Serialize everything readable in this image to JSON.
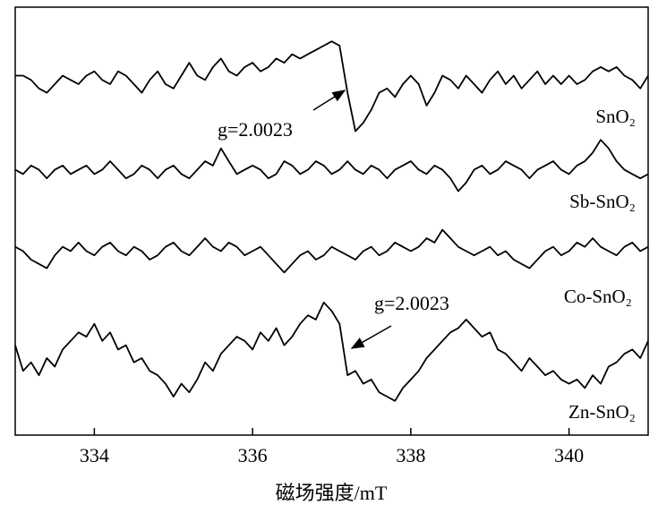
{
  "chart_data": {
    "type": "line",
    "x_label": "磁场强度/mT",
    "x": [
      333.0,
      333.1,
      333.2,
      333.3,
      333.4,
      333.5,
      333.6,
      333.7,
      333.8,
      333.9,
      334.0,
      334.1,
      334.2,
      334.3,
      334.4,
      334.5,
      334.6,
      334.7,
      334.8,
      334.9,
      335.0,
      335.1,
      335.2,
      335.3,
      335.4,
      335.5,
      335.6,
      335.7,
      335.8,
      335.9,
      336.0,
      336.1,
      336.2,
      336.3,
      336.4,
      336.5,
      336.6,
      336.7,
      336.8,
      336.9,
      337.0,
      337.1,
      337.2,
      337.3,
      337.4,
      337.5,
      337.6,
      337.7,
      337.8,
      337.9,
      338.0,
      338.1,
      338.2,
      338.3,
      338.4,
      338.5,
      338.6,
      338.7,
      338.8,
      338.9,
      339.0,
      339.1,
      339.2,
      339.3,
      339.4,
      339.5,
      339.6,
      339.7,
      339.8,
      339.9,
      340.0,
      340.1,
      340.2,
      340.3,
      340.4,
      340.5,
      340.6,
      340.7,
      340.8,
      340.9,
      341.0
    ],
    "series": [
      {
        "name": "SnO₂",
        "color": "#000000",
        "values": [
          84,
          84,
          83,
          81,
          80,
          82,
          84,
          83,
          82,
          84,
          85,
          83,
          82,
          85,
          84,
          82,
          80,
          83,
          85,
          82,
          81,
          84,
          87,
          84,
          83,
          86,
          88,
          85,
          84,
          86,
          87,
          85,
          86,
          88,
          87,
          89,
          88,
          89,
          90,
          91,
          92,
          91,
          80,
          71,
          73,
          76,
          80,
          81,
          79,
          82,
          84,
          82,
          77,
          80,
          84,
          83,
          81,
          84,
          82,
          80,
          83,
          85,
          82,
          84,
          81,
          83,
          85,
          82,
          84,
          82,
          84,
          82,
          83,
          85,
          86,
          85,
          86,
          84,
          83,
          81,
          84
        ]
      },
      {
        "name": "Sb-SnO₂",
        "color": "#000000",
        "values": [
          62,
          61,
          63,
          62,
          60,
          62,
          63,
          61,
          62,
          63,
          61,
          62,
          64,
          62,
          60,
          61,
          63,
          62,
          60,
          62,
          63,
          61,
          60,
          62,
          64,
          63,
          67,
          64,
          61,
          62,
          63,
          62,
          60,
          61,
          64,
          63,
          61,
          62,
          64,
          63,
          61,
          62,
          64,
          62,
          61,
          63,
          62,
          60,
          62,
          63,
          64,
          62,
          61,
          63,
          62,
          60,
          57,
          59,
          62,
          63,
          61,
          62,
          64,
          63,
          62,
          60,
          62,
          63,
          64,
          62,
          61,
          63,
          64,
          66,
          69,
          67,
          64,
          62,
          61,
          60,
          61
        ]
      },
      {
        "name": "Co-SnO₂",
        "color": "#000000",
        "values": [
          44,
          43,
          41,
          40,
          39,
          42,
          44,
          43,
          45,
          43,
          42,
          44,
          45,
          43,
          42,
          44,
          43,
          41,
          42,
          44,
          45,
          43,
          42,
          44,
          46,
          44,
          43,
          45,
          44,
          42,
          43,
          44,
          42,
          40,
          38,
          40,
          42,
          43,
          41,
          42,
          44,
          43,
          42,
          41,
          43,
          44,
          42,
          43,
          45,
          44,
          43,
          44,
          46,
          45,
          48,
          46,
          44,
          43,
          42,
          43,
          44,
          42,
          43,
          41,
          40,
          39,
          41,
          43,
          44,
          42,
          43,
          45,
          44,
          46,
          44,
          43,
          42,
          44,
          45,
          43,
          44
        ]
      },
      {
        "name": "Zn-SnO₂",
        "color": "#000000",
        "values": [
          21,
          15,
          17,
          14,
          18,
          16,
          20,
          22,
          24,
          23,
          26,
          22,
          24,
          20,
          21,
          17,
          18,
          15,
          14,
          12,
          9,
          12,
          10,
          13,
          17,
          15,
          19,
          21,
          23,
          22,
          20,
          24,
          22,
          25,
          21,
          23,
          26,
          28,
          27,
          31,
          29,
          26,
          14,
          15,
          12,
          13,
          10,
          9,
          8,
          11,
          13,
          15,
          18,
          20,
          22,
          24,
          25,
          27,
          25,
          23,
          24,
          20,
          19,
          17,
          15,
          18,
          16,
          14,
          15,
          13,
          12,
          13,
          11,
          14,
          12,
          16,
          17,
          19,
          20,
          18,
          22
        ]
      }
    ],
    "annotations": [
      "g=2.0023",
      "g=2.0023"
    ],
    "xlim": [
      333,
      341
    ],
    "ylim": [
      0,
      100
    ],
    "xticks": [
      334,
      336,
      338,
      340
    ],
    "grid": false
  }
}
